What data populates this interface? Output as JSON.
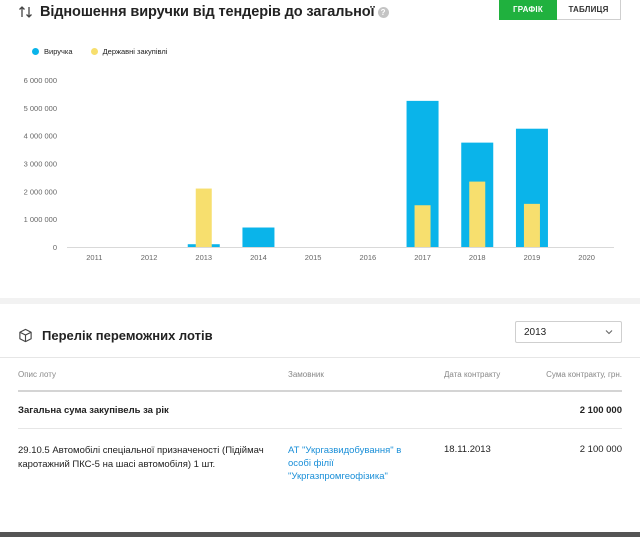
{
  "header": {
    "title": "Відношення виручки від тендерів до загальної",
    "help_glyph": "?",
    "toggle": {
      "chart_label": "ГРАФІК",
      "table_label": "ТАБЛИЦЯ"
    }
  },
  "colors": {
    "revenue": "#0ab4ea",
    "procurement": "#f7df6e",
    "accent": "#20b13e",
    "link": "#1a8fd8"
  },
  "chart_data": {
    "type": "bar",
    "categories": [
      "2011",
      "2012",
      "2013",
      "2014",
      "2015",
      "2016",
      "2017",
      "2018",
      "2019",
      "2020"
    ],
    "series": [
      {
        "name": "Виручка",
        "values": [
          0,
          0,
          100000,
          700000,
          0,
          0,
          5250000,
          3750000,
          4250000,
          0
        ]
      },
      {
        "name": "Державні закупівлі",
        "values": [
          0,
          0,
          2100000,
          0,
          0,
          0,
          1500000,
          2350000,
          1550000,
          0
        ]
      }
    ],
    "y_ticks": [
      "0",
      "1 000 000",
      "2 000 000",
      "3 000 000",
      "4 000 000",
      "5 000 000",
      "6 000 000"
    ],
    "ylim": [
      0,
      6000000
    ],
    "overlay": true,
    "grid": false,
    "legend": "top-left"
  },
  "lots": {
    "title": "Перелік переможних лотів",
    "year_selected": "2013",
    "columns": [
      "Опис лоту",
      "Замовник",
      "Дата контракту",
      "Сума контракту, грн."
    ],
    "total_label": "Загальна сума закупівель за рік",
    "total_value": "2 100 000",
    "rows": [
      {
        "description": "29.10.5 Автомобілі спеціальної призначеності (Підіймач каротажний ПКС-5 на шасі автомобіля) 1 шт.",
        "customer": "АТ \"Укргазвидобування\" в особі філії \"Укргазпромгеофізика\"",
        "date": "18.11.2013",
        "sum": "2 100 000"
      }
    ]
  }
}
